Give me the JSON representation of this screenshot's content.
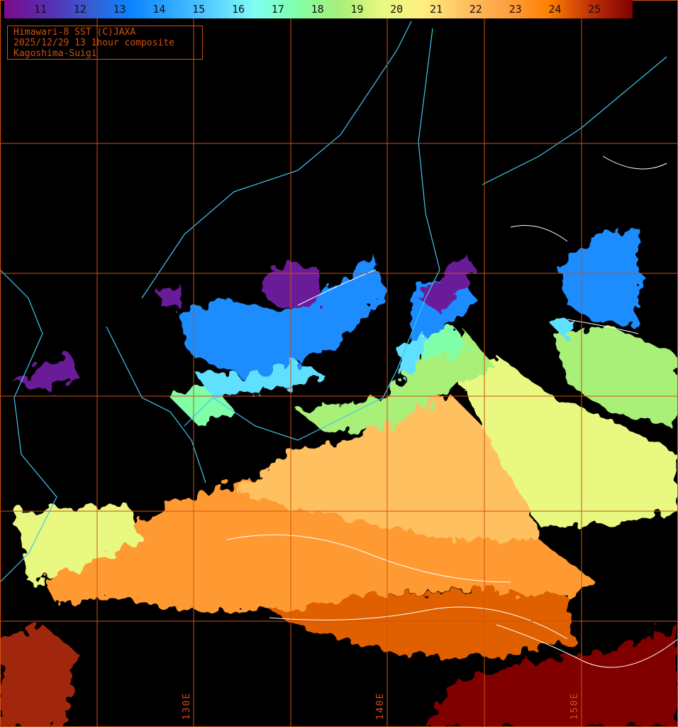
{
  "colorbar": {
    "labels": [
      "11",
      "12",
      "13",
      "14",
      "15",
      "16",
      "17",
      "18",
      "19",
      "20",
      "21",
      "22",
      "23",
      "24",
      "25"
    ],
    "colors": [
      "#7a0c8c",
      "#5a2cb0",
      "#3a5ad0",
      "#0a84ff",
      "#30a8ff",
      "#5ad0ff",
      "#80fff4",
      "#80ffa8",
      "#a8f078",
      "#e8f880",
      "#fff080",
      "#ffc060",
      "#ffa040",
      "#ff8000",
      "#c03008",
      "#800000"
    ]
  },
  "info": {
    "line1": "Himawari-8 SST (C)JAXA",
    "line2": "2025/12/29 13 1hour composite",
    "line3": "Kagoshima-Suigi"
  },
  "longitude_labels": [
    "130E",
    "140E",
    "150E"
  ],
  "grid_color": "#d05010",
  "coastline_color": "#40c8f0"
}
